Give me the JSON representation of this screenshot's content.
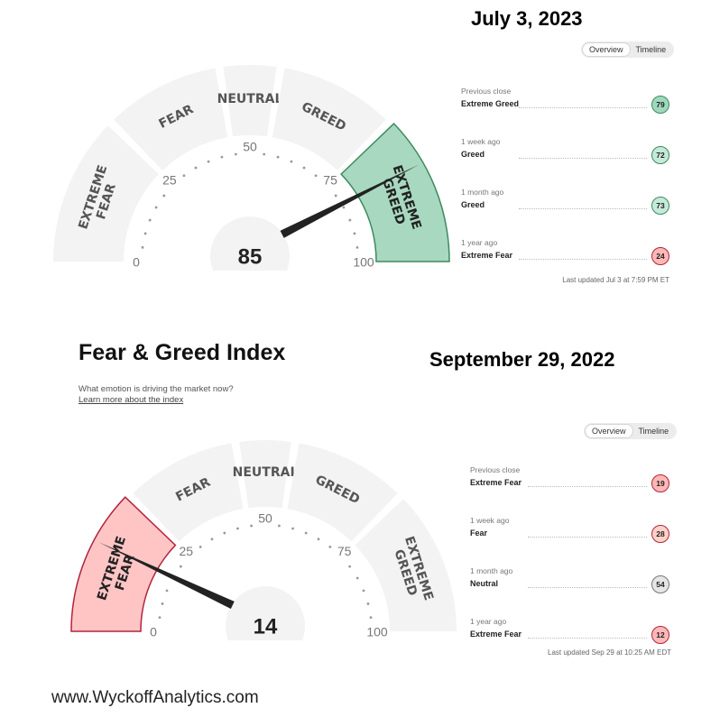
{
  "chart_data": [
    {
      "type": "gauge",
      "date_title": "July 3, 2023",
      "value": 85,
      "range": [
        0,
        100
      ],
      "tick_labels": [
        "0",
        "25",
        "50",
        "75",
        "100"
      ],
      "segments": [
        {
          "label": "EXTREME FEAR",
          "range": [
            0,
            25
          ],
          "active": false
        },
        {
          "label": "FEAR",
          "range": [
            25,
            45
          ],
          "active": false
        },
        {
          "label": "NEUTRAL",
          "range": [
            45,
            55
          ],
          "active": false
        },
        {
          "label": "GREED",
          "range": [
            55,
            75
          ],
          "active": false
        },
        {
          "label": "EXTREME GREED",
          "range": [
            75,
            100
          ],
          "active": true
        }
      ],
      "toggle": {
        "overview": "Overview",
        "timeline": "Timeline",
        "active": "overview"
      },
      "history": [
        {
          "period": "Previous close",
          "sentiment": "Extreme Greed",
          "value": 79
        },
        {
          "period": "1 week ago",
          "sentiment": "Greed",
          "value": 72
        },
        {
          "period": "1 month ago",
          "sentiment": "Greed",
          "value": 73
        },
        {
          "period": "1 year ago",
          "sentiment": "Extreme Fear",
          "value": 24
        }
      ],
      "last_updated": "Last updated Jul 3 at 7:59 PM ET"
    },
    {
      "type": "gauge",
      "title": "Fear & Greed Index",
      "subtitle": "What emotion is driving the market now?",
      "link": "Learn more about the index",
      "date_title": "September 29, 2022",
      "value": 14,
      "range": [
        0,
        100
      ],
      "tick_labels": [
        "0",
        "25",
        "50",
        "75",
        "100"
      ],
      "segments": [
        {
          "label": "EXTREME FEAR",
          "range": [
            0,
            25
          ],
          "active": true
        },
        {
          "label": "FEAR",
          "range": [
            25,
            45
          ],
          "active": false
        },
        {
          "label": "NEUTRAL",
          "range": [
            45,
            55
          ],
          "active": false
        },
        {
          "label": "GREED",
          "range": [
            55,
            75
          ],
          "active": false
        },
        {
          "label": "EXTREME GREED",
          "range": [
            75,
            100
          ],
          "active": false
        }
      ],
      "toggle": {
        "overview": "Overview",
        "timeline": "Timeline",
        "active": "overview"
      },
      "history": [
        {
          "period": "Previous close",
          "sentiment": "Extreme Fear",
          "value": 19
        },
        {
          "period": "1 week ago",
          "sentiment": "Fear",
          "value": 28
        },
        {
          "period": "1 month ago",
          "sentiment": "Neutral",
          "value": 54
        },
        {
          "period": "1 year ago",
          "sentiment": "Extreme Fear",
          "value": 12
        }
      ],
      "last_updated": "Last updated Sep 29 at 10:25 AM EDT"
    }
  ],
  "colors": {
    "segment_fill": "#f3f3f3",
    "extreme_greed_fill": "#a8d8c0",
    "extreme_greed_stroke": "#3e8a5e",
    "extreme_fear_fill": "#ffc5c5",
    "extreme_fear_stroke": "#b0243a",
    "needle": "#222222",
    "badge_greed": "#c6ead9",
    "badge_extreme_greed": "#9fd9bd",
    "badge_fear": "#ffd2c8",
    "badge_extreme_fear": "#ffb8b8",
    "badge_neutral": "#e6e6e6"
  },
  "footer": "www.WyckoffAnalytics.com"
}
